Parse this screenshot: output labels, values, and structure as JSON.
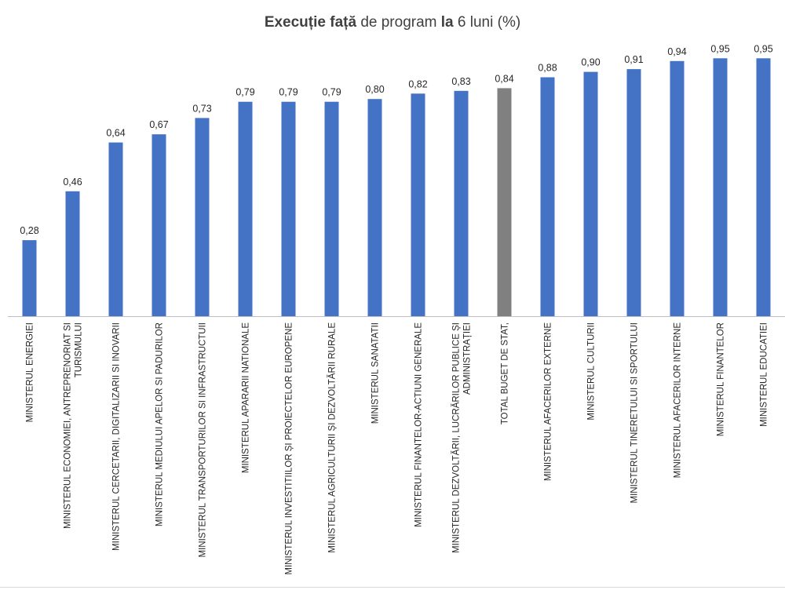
{
  "chart_data": {
    "type": "bar",
    "title_parts": [
      {
        "text": "Execuție față",
        "bold": true
      },
      {
        "text": " de program ",
        "bold": false
      },
      {
        "text": "la",
        "bold": true
      },
      {
        "text": " 6 luni (%)",
        "bold": false
      }
    ],
    "categories": [
      [
        "MINISTERUL ENERGIEI"
      ],
      [
        "MINISTERUL ECONOMIEI, ANTREPRENORIAT SI",
        "TURISMULUI"
      ],
      [
        "MINISTERUL CERCETARII, DIGITALIZARII SI INOVARII"
      ],
      [
        "MINISTERUL MEDIULUI APELOR SI PADURILOR"
      ],
      [
        "MINISTERUL TRANSPORTURILOR SI INFRASTRUCTUII"
      ],
      [
        "MINISTERUL APARARII NATIONALE"
      ],
      [
        "MINISTERUL INVESTITIILOR ȘI PROIECTELOR  EUROPENE"
      ],
      [
        "MINISTERUL AGRICULTURII ȘI DEZVOLTĂRII RURALE"
      ],
      [
        "MINISTERUL SANATATII"
      ],
      [
        "MINISTERUL FINANTELOR-ACTIUNI GENERALE"
      ],
      [
        "MINISTERUL DEZVOLTĂRII, LUCRĂRILOR PUBLICE ȘI",
        "ADMINISTRAȚIEI"
      ],
      [
        "TOTAL BUGET DE STAT,"
      ],
      [
        "MINISTERUL AFACERILOR EXTERNE"
      ],
      [
        "MINISTERUL CULTURII"
      ],
      [
        "MINISTERUL TINERETULUI SI SPORTULUI"
      ],
      [
        "MINISTERUL AFACERILOR INTERNE"
      ],
      [
        "MINISTERUL FINANTELOR"
      ],
      [
        "MINISTERUL EDUCATIEI"
      ]
    ],
    "values": [
      0.28,
      0.46,
      0.64,
      0.67,
      0.73,
      0.79,
      0.79,
      0.79,
      0.8,
      0.82,
      0.83,
      0.84,
      0.88,
      0.9,
      0.91,
      0.94,
      0.95,
      0.95
    ],
    "value_labels": [
      "0,28",
      "0,46",
      "0,64",
      "0,67",
      "0,73",
      "0,79",
      "0,79",
      "0,79",
      "0,80",
      "0,82",
      "0,83",
      "0,84",
      "0,88",
      "0,90",
      "0,91",
      "0,94",
      "0,95",
      "0,95"
    ],
    "highlight_index": 11,
    "ylim": [
      0,
      1.0
    ],
    "grid": false,
    "legend": "none",
    "colors": {
      "bar": "#4472C4",
      "highlight": "#808080",
      "axis": "#BFBFBF",
      "text": "#262626",
      "title": "#404040"
    }
  }
}
